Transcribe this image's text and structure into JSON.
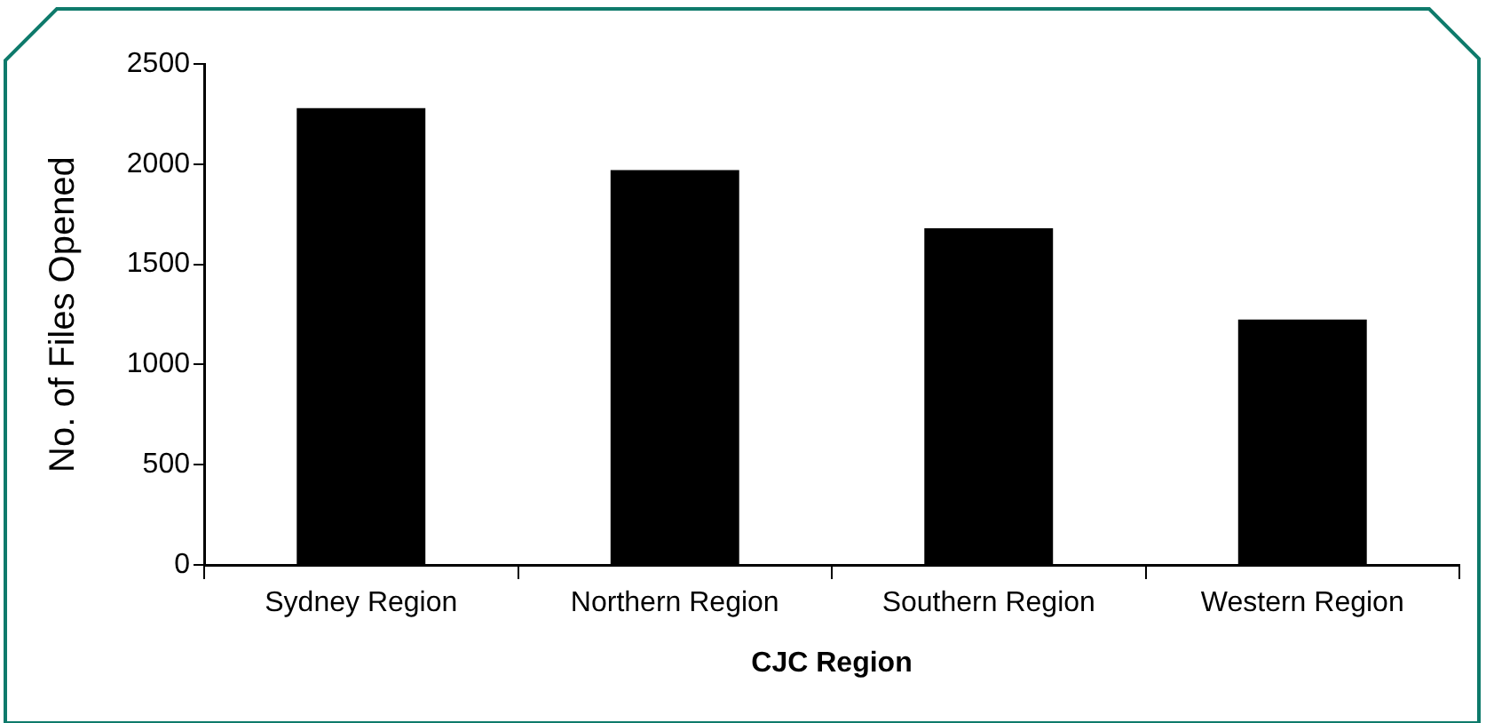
{
  "chart_data": {
    "type": "bar",
    "xlabel": "CJC Region",
    "ylabel": "No. of Files Opened",
    "categories": [
      "Sydney Region",
      "Northern Region",
      "Southern Region",
      "Western Region"
    ],
    "values": [
      2280,
      1970,
      1680,
      1225
    ],
    "color": "#000000",
    "ylim": [
      0,
      2500
    ],
    "yticks": [
      0,
      500,
      1000,
      1500,
      2000,
      2500
    ],
    "grid": false,
    "legend": false
  }
}
